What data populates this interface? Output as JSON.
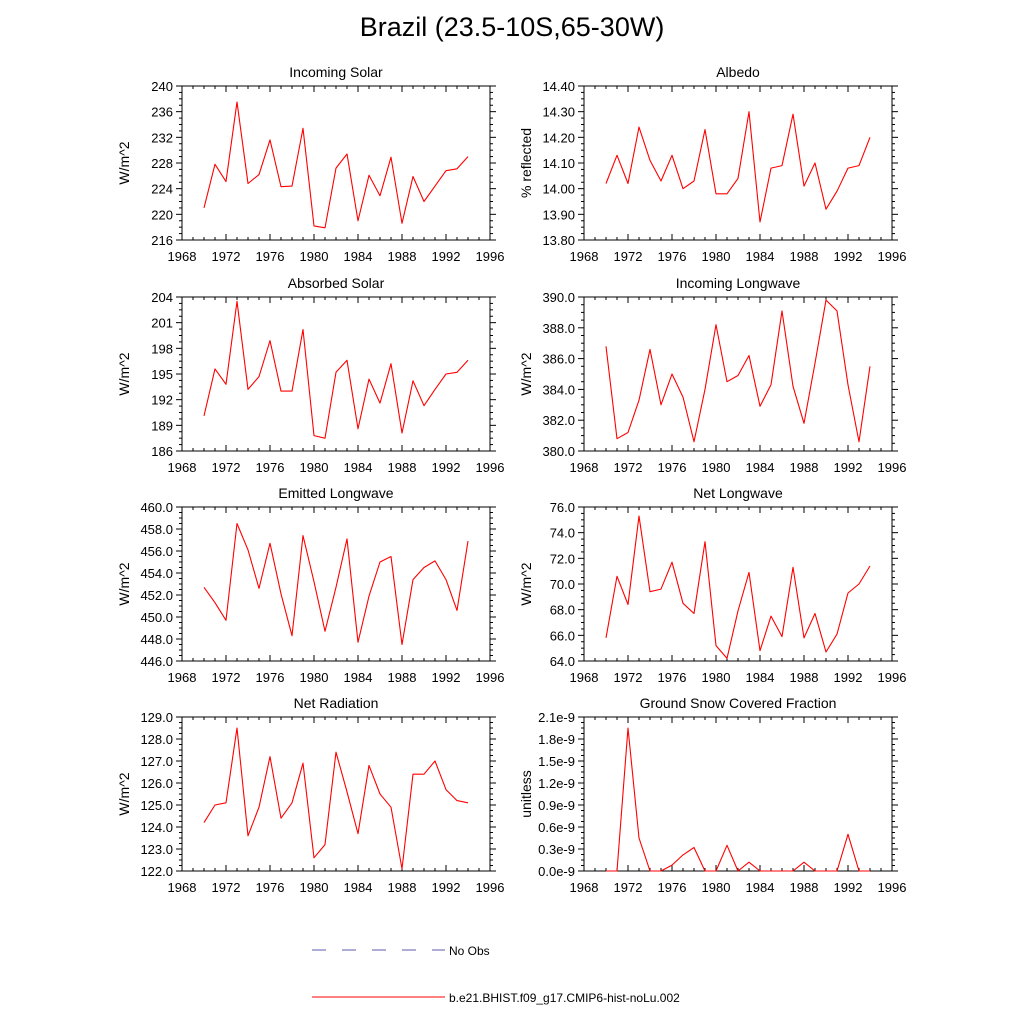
{
  "figure": {
    "title": "Brazil (23.5-10S,65-30W)",
    "legend": [
      {
        "label": "No Obs",
        "color": "#5a5aa8",
        "style": "dashed"
      },
      {
        "label": "b.e21.BHIST.f09_g17.CMIP6-hist-noLu.002",
        "color": "#ff0000",
        "style": "solid"
      }
    ]
  },
  "chart_data": [
    {
      "type": "line",
      "title": "Incoming Solar",
      "ylabel": "W/m^2",
      "xlim": [
        1968,
        1996
      ],
      "ylim": [
        216,
        240
      ],
      "xticks": [
        "1968",
        "1972",
        "1976",
        "1980",
        "1984",
        "1988",
        "1992",
        "1996"
      ],
      "yticks": [
        "216",
        "220",
        "224",
        "228",
        "232",
        "236",
        "240"
      ],
      "series": [
        {
          "color": "#ff0000",
          "x": [
            1970,
            1971,
            1972,
            1973,
            1974,
            1975,
            1976,
            1977,
            1978,
            1979,
            1980,
            1981,
            1982,
            1983,
            1984,
            1985,
            1986,
            1987,
            1988,
            1989,
            1990,
            1991,
            1992,
            1993,
            1994
          ],
          "values": [
            221.0,
            227.8,
            225.1,
            237.5,
            224.8,
            226.2,
            231.6,
            224.3,
            224.4,
            233.4,
            218.2,
            217.9,
            227.2,
            229.4,
            219.0,
            226.1,
            222.9,
            228.9,
            218.6,
            225.9,
            222.0,
            224.4,
            226.8,
            227.1,
            229.0
          ]
        }
      ]
    },
    {
      "type": "line",
      "title": "Albedo",
      "ylabel": "% reflected",
      "xlim": [
        1968,
        1996
      ],
      "ylim": [
        13.8,
        14.4
      ],
      "xticks": [
        "1968",
        "1972",
        "1976",
        "1980",
        "1984",
        "1988",
        "1992",
        "1996"
      ],
      "yticks": [
        "13.80",
        "13.90",
        "14.00",
        "14.10",
        "14.20",
        "14.30",
        "14.40"
      ],
      "series": [
        {
          "color": "#ff0000",
          "x": [
            1970,
            1971,
            1972,
            1973,
            1974,
            1975,
            1976,
            1977,
            1978,
            1979,
            1980,
            1981,
            1982,
            1983,
            1984,
            1985,
            1986,
            1987,
            1988,
            1989,
            1990,
            1991,
            1992,
            1993,
            1994
          ],
          "values": [
            14.02,
            14.13,
            14.02,
            14.24,
            14.11,
            14.03,
            14.13,
            14.0,
            14.03,
            14.23,
            13.98,
            13.98,
            14.04,
            14.3,
            13.87,
            14.08,
            14.09,
            14.29,
            14.01,
            14.1,
            13.92,
            13.99,
            14.08,
            14.09,
            14.2
          ]
        }
      ]
    },
    {
      "type": "line",
      "title": "Absorbed Solar",
      "ylabel": "W/m^2",
      "xlim": [
        1968,
        1996
      ],
      "ylim": [
        186,
        204
      ],
      "xticks": [
        "1968",
        "1972",
        "1976",
        "1980",
        "1984",
        "1988",
        "1992",
        "1996"
      ],
      "yticks": [
        "186",
        "189",
        "192",
        "195",
        "198",
        "201",
        "204"
      ],
      "series": [
        {
          "color": "#ff0000",
          "x": [
            1970,
            1971,
            1972,
            1973,
            1974,
            1975,
            1976,
            1977,
            1978,
            1979,
            1980,
            1981,
            1982,
            1983,
            1984,
            1985,
            1986,
            1987,
            1988,
            1989,
            1990,
            1991,
            1992,
            1993,
            1994
          ],
          "values": [
            190.1,
            195.6,
            193.8,
            203.5,
            193.2,
            194.7,
            198.9,
            193.0,
            193.0,
            200.2,
            187.8,
            187.5,
            195.2,
            196.6,
            188.6,
            194.4,
            191.6,
            196.2,
            188.1,
            194.2,
            191.3,
            193.2,
            195.0,
            195.2,
            196.6
          ]
        }
      ]
    },
    {
      "type": "line",
      "title": "Incoming Longwave",
      "ylabel": "W/m^2",
      "xlim": [
        1968,
        1996
      ],
      "ylim": [
        380,
        390
      ],
      "xticks": [
        "1968",
        "1972",
        "1976",
        "1980",
        "1984",
        "1988",
        "1992",
        "1996"
      ],
      "yticks": [
        "380.0",
        "382.0",
        "384.0",
        "386.0",
        "388.0",
        "390.0"
      ],
      "series": [
        {
          "color": "#ff0000",
          "x": [
            1970,
            1971,
            1972,
            1973,
            1974,
            1975,
            1976,
            1977,
            1978,
            1979,
            1980,
            1981,
            1982,
            1983,
            1984,
            1985,
            1986,
            1987,
            1988,
            1989,
            1990,
            1991,
            1992,
            1993,
            1994
          ],
          "values": [
            386.8,
            380.8,
            381.2,
            383.3,
            386.6,
            383.0,
            385.0,
            383.5,
            380.6,
            384.0,
            388.2,
            384.5,
            384.9,
            386.2,
            382.9,
            384.3,
            389.1,
            384.2,
            381.8,
            385.7,
            389.8,
            389.1,
            384.3,
            380.6,
            385.5
          ]
        }
      ]
    },
    {
      "type": "line",
      "title": "Emitted Longwave",
      "ylabel": "W/m^2",
      "xlim": [
        1968,
        1996
      ],
      "ylim": [
        446,
        460
      ],
      "xticks": [
        "1968",
        "1972",
        "1976",
        "1980",
        "1984",
        "1988",
        "1992",
        "1996"
      ],
      "yticks": [
        "446.0",
        "448.0",
        "450.0",
        "452.0",
        "454.0",
        "456.0",
        "458.0",
        "460.0"
      ],
      "series": [
        {
          "color": "#ff0000",
          "x": [
            1970,
            1971,
            1972,
            1973,
            1974,
            1975,
            1976,
            1977,
            1978,
            1979,
            1980,
            1981,
            1982,
            1983,
            1984,
            1985,
            1986,
            1987,
            1988,
            1989,
            1990,
            1991,
            1992,
            1993,
            1994
          ],
          "values": [
            452.7,
            451.3,
            449.7,
            458.5,
            456.1,
            452.6,
            456.7,
            452.1,
            448.3,
            457.4,
            453.2,
            448.7,
            452.7,
            457.1,
            447.7,
            451.9,
            455.0,
            455.5,
            447.5,
            453.4,
            454.5,
            455.1,
            453.4,
            450.6,
            456.9
          ]
        }
      ]
    },
    {
      "type": "line",
      "title": "Net Longwave",
      "ylabel": "W/m^2",
      "xlim": [
        1968,
        1996
      ],
      "ylim": [
        64,
        76
      ],
      "xticks": [
        "1968",
        "1972",
        "1976",
        "1980",
        "1984",
        "1988",
        "1992",
        "1996"
      ],
      "yticks": [
        "64.0",
        "66.0",
        "68.0",
        "70.0",
        "72.0",
        "74.0",
        "76.0"
      ],
      "series": [
        {
          "color": "#ff0000",
          "x": [
            1970,
            1971,
            1972,
            1973,
            1974,
            1975,
            1976,
            1977,
            1978,
            1979,
            1980,
            1981,
            1982,
            1983,
            1984,
            1985,
            1986,
            1987,
            1988,
            1989,
            1990,
            1991,
            1992,
            1993,
            1994
          ],
          "values": [
            65.8,
            70.6,
            68.4,
            75.3,
            69.4,
            69.6,
            71.7,
            68.5,
            67.7,
            73.3,
            65.2,
            64.2,
            67.9,
            70.9,
            64.8,
            67.5,
            65.9,
            71.3,
            65.8,
            67.7,
            64.7,
            66.1,
            69.3,
            70.0,
            71.4
          ]
        }
      ]
    },
    {
      "type": "line",
      "title": "Net Radiation",
      "ylabel": "W/m^2",
      "xlim": [
        1968,
        1996
      ],
      "ylim": [
        122,
        129
      ],
      "xticks": [
        "1968",
        "1972",
        "1976",
        "1980",
        "1984",
        "1988",
        "1992",
        "1996"
      ],
      "yticks": [
        "122.0",
        "123.0",
        "124.0",
        "125.0",
        "126.0",
        "127.0",
        "128.0",
        "129.0"
      ],
      "series": [
        {
          "color": "#ff0000",
          "x": [
            1970,
            1971,
            1972,
            1973,
            1974,
            1975,
            1976,
            1977,
            1978,
            1979,
            1980,
            1981,
            1982,
            1983,
            1984,
            1985,
            1986,
            1987,
            1988,
            1989,
            1990,
            1991,
            1992,
            1993,
            1994
          ],
          "values": [
            124.2,
            125.0,
            125.1,
            128.5,
            123.6,
            124.9,
            127.2,
            124.4,
            125.1,
            126.9,
            122.6,
            123.2,
            127.4,
            125.6,
            123.7,
            126.8,
            125.5,
            124.9,
            122.1,
            126.4,
            126.4,
            127.0,
            125.7,
            125.2,
            125.1
          ]
        }
      ]
    },
    {
      "type": "line",
      "title": "Ground Snow Covered Fraction",
      "ylabel": "unitless",
      "xlim": [
        1968,
        1996
      ],
      "ylim": [
        0,
        2.1
      ],
      "yunit": "e-9",
      "xticks": [
        "1968",
        "1972",
        "1976",
        "1980",
        "1984",
        "1988",
        "1992",
        "1996"
      ],
      "yticks": [
        "0.0e-9",
        "0.3e-9",
        "0.6e-9",
        "0.9e-9",
        "1.2e-9",
        "1.5e-9",
        "1.8e-9",
        "2.1e-9"
      ],
      "series": [
        {
          "color": "#ff0000",
          "x": [
            1970,
            1971,
            1972,
            1973,
            1974,
            1975,
            1976,
            1977,
            1978,
            1979,
            1980,
            1981,
            1982,
            1983,
            1984,
            1985,
            1986,
            1987,
            1988,
            1989,
            1990,
            1991,
            1992,
            1993,
            1994
          ],
          "values": [
            0,
            0,
            1.95,
            0.45,
            0,
            0,
            0.08,
            0.22,
            0.32,
            0,
            0,
            0.35,
            0,
            0.12,
            0,
            0,
            0,
            0,
            0.12,
            0,
            0,
            0,
            0.5,
            0,
            0
          ]
        }
      ]
    }
  ]
}
